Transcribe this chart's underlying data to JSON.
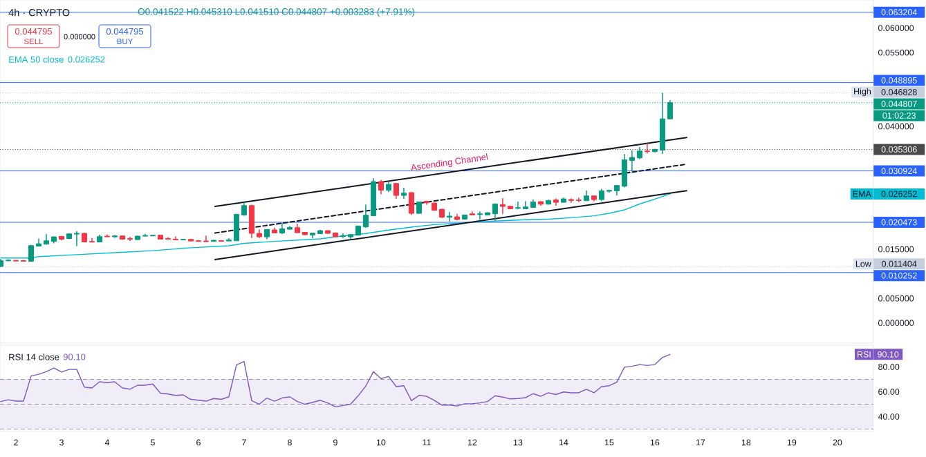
{
  "chart_data": [
    {
      "type": "candlestick",
      "title": "4h · CRYPTO",
      "x": [
        1.6667,
        1.8333,
        2,
        2.1667,
        2.3333,
        2.5,
        2.6667,
        2.8333,
        3,
        3.1667,
        3.3333,
        3.5,
        3.6667,
        3.8333,
        4,
        4.1667,
        4.3333,
        4.5,
        4.6667,
        4.8333,
        5,
        5.1667,
        5.3333,
        5.5,
        5.6667,
        5.8333,
        6,
        6.1667,
        6.3333,
        6.5,
        6.6667,
        6.8333,
        7,
        7.1667,
        7.3333,
        7.5,
        7.6667,
        7.8333,
        8,
        8.1667,
        8.3333,
        8.5,
        8.6667,
        8.8333,
        9,
        9.1667,
        9.3333,
        9.5,
        9.6667,
        9.8333,
        10,
        10.1667,
        10.3333,
        10.5,
        10.6667,
        10.8333,
        11,
        11.1667,
        11.3333,
        11.5,
        11.6667,
        11.8333,
        12,
        12.1667,
        12.3333,
        12.5,
        12.6667,
        12.8333,
        13,
        13.1667,
        13.3333,
        13.5,
        13.6667,
        13.8333,
        14,
        14.1667,
        14.3333,
        14.5,
        14.6667,
        14.8333,
        15,
        15.1667,
        15.3333,
        15.5,
        15.6667,
        15.8333,
        16,
        16.1667,
        16.3333
      ],
      "ohlc": [
        [
          0.0115,
          0.013,
          0.0114,
          0.0127
        ],
        [
          0.01264,
          0.01293,
          0.01255,
          0.01278
        ],
        [
          0.01274,
          0.01278,
          0.01255,
          0.0126
        ],
        [
          0.01269,
          0.01283,
          0.01255,
          0.01255
        ],
        [
          0.01255,
          0.01588,
          0.0125,
          0.01573
        ],
        [
          0.01564,
          0.01714,
          0.0156,
          0.01611
        ],
        [
          0.01602,
          0.01808,
          0.01597,
          0.01672
        ],
        [
          0.01658,
          0.0176,
          0.0162,
          0.01751
        ],
        [
          0.01761,
          0.0177,
          0.01681,
          0.01705
        ],
        [
          0.01719,
          0.01822,
          0.01705,
          0.01812
        ],
        [
          0.01808,
          0.01869,
          0.01564,
          0.01822
        ],
        [
          0.01822,
          0.01836,
          0.0164,
          0.01648
        ],
        [
          0.01658,
          0.01728,
          0.0164,
          0.01644
        ],
        [
          0.01648,
          0.01794,
          0.0164,
          0.01756
        ],
        [
          0.01766,
          0.01798,
          0.01747,
          0.01751
        ],
        [
          0.01751,
          0.01789,
          0.01733,
          0.0177
        ],
        [
          0.0177,
          0.01775,
          0.01691,
          0.01705
        ],
        [
          0.01719,
          0.01751,
          0.01667,
          0.01705
        ],
        [
          0.01695,
          0.01775,
          0.0169,
          0.01766
        ],
        [
          0.01766,
          0.01812,
          0.01761,
          0.0178
        ],
        [
          0.0177,
          0.01789,
          0.01766,
          0.01784
        ],
        [
          0.01784,
          0.01789,
          0.017,
          0.01705
        ],
        [
          0.01719,
          0.01742,
          0.017,
          0.01705
        ],
        [
          0.01705,
          0.01761,
          0.01686,
          0.01691
        ],
        [
          0.01691,
          0.01705,
          0.01686,
          0.017
        ],
        [
          0.017,
          0.01705,
          0.01662,
          0.01667
        ],
        [
          0.01672,
          0.01686,
          0.01653,
          0.01658
        ],
        [
          0.01667,
          0.01775,
          0.01648,
          0.01653
        ],
        [
          0.01658,
          0.01691,
          0.01653,
          0.01681
        ],
        [
          0.01676,
          0.01681,
          0.01658,
          0.01662
        ],
        [
          0.01667,
          0.01723,
          0.01662,
          0.01691
        ],
        [
          0.01672,
          0.0222,
          0.01667,
          0.0221
        ],
        [
          0.02196,
          0.02454,
          0.02182,
          0.02388
        ],
        [
          0.02388,
          0.02407,
          0.01728,
          0.01822
        ],
        [
          0.01822,
          0.01901,
          0.01728,
          0.01751
        ],
        [
          0.01751,
          0.0191,
          0.01705,
          0.01901
        ],
        [
          0.01892,
          0.01939,
          0.01826,
          0.01831
        ],
        [
          0.01831,
          0.02032,
          0.01808,
          0.01915
        ],
        [
          0.01906,
          0.01972,
          0.01901,
          0.01943
        ],
        [
          0.01939,
          0.02018,
          0.01831,
          0.01836
        ],
        [
          0.01845,
          0.0185,
          0.01789,
          0.01794
        ],
        [
          0.01789,
          0.01831,
          0.01723,
          0.01826
        ],
        [
          0.01817,
          0.01892,
          0.01812,
          0.01878
        ],
        [
          0.01878,
          0.01885,
          0.01817,
          0.01822
        ],
        [
          0.01831,
          0.0184,
          0.01745,
          0.01751
        ],
        [
          0.01761,
          0.01822,
          0.01728,
          0.01775
        ],
        [
          0.01751,
          0.01805,
          0.01705,
          0.01798
        ],
        [
          0.01784,
          0.0198,
          0.0178,
          0.01972
        ],
        [
          0.01953,
          0.02407,
          0.01939,
          0.02192
        ],
        [
          0.02182,
          0.02946,
          0.02175,
          0.02875
        ],
        [
          0.02875,
          0.02908,
          0.02618,
          0.02702
        ],
        [
          0.02702,
          0.02861,
          0.02665,
          0.02819
        ],
        [
          0.02838,
          0.0285,
          0.02524,
          0.02594
        ],
        [
          0.02594,
          0.02749,
          0.02524,
          0.02641
        ],
        [
          0.02651,
          0.0266,
          0.02196,
          0.02229
        ],
        [
          0.02229,
          0.0247,
          0.0222,
          0.02463
        ],
        [
          0.02477,
          0.02485,
          0.02407,
          0.02445
        ],
        [
          0.0244,
          0.02445,
          0.02285,
          0.0229
        ],
        [
          0.02313,
          0.0232,
          0.02135,
          0.0215
        ],
        [
          0.0215,
          0.02257,
          0.02065,
          0.02173
        ],
        [
          0.02159,
          0.0222,
          0.02089,
          0.02103
        ],
        [
          0.02112,
          0.02205,
          0.02105,
          0.02196
        ],
        [
          0.0222,
          0.02267,
          0.0219,
          0.02196
        ],
        [
          0.02206,
          0.02267,
          0.02103,
          0.0222
        ],
        [
          0.02196,
          0.0225,
          0.0219,
          0.02243
        ],
        [
          0.0222,
          0.0243,
          0.02079,
          0.02421
        ],
        [
          0.02407,
          0.02538,
          0.0222,
          0.0237
        ],
        [
          0.02374,
          0.0238,
          0.02318,
          0.02323
        ],
        [
          0.02332,
          0.02468,
          0.02313,
          0.02346
        ],
        [
          0.02323,
          0.02477,
          0.02318,
          0.0236
        ],
        [
          0.02351,
          0.0251,
          0.02346,
          0.02463
        ],
        [
          0.02468,
          0.02475,
          0.02384,
          0.02416
        ],
        [
          0.02416,
          0.0251,
          0.0241,
          0.02491
        ],
        [
          0.02501,
          0.02533,
          0.02384,
          0.02454
        ],
        [
          0.02454,
          0.02548,
          0.0245,
          0.02524
        ],
        [
          0.0251,
          0.02533,
          0.02445,
          0.02491
        ],
        [
          0.02501,
          0.02548,
          0.02454,
          0.02491
        ],
        [
          0.02487,
          0.02697,
          0.0248,
          0.02585
        ],
        [
          0.02585,
          0.0259,
          0.02477,
          0.0251
        ],
        [
          0.0251,
          0.02726,
          0.02477,
          0.02688
        ],
        [
          0.02679,
          0.02711,
          0.02651,
          0.02697
        ],
        [
          0.02688,
          0.028,
          0.02594,
          0.02796
        ],
        [
          0.02782,
          0.03437,
          0.02758,
          0.0332
        ],
        [
          0.03306,
          0.03508,
          0.03086,
          0.03367
        ],
        [
          0.03358,
          0.03578,
          0.03334,
          0.03498
        ],
        [
          0.03498,
          0.03662,
          0.03447,
          0.03484
        ],
        [
          0.03484,
          0.0354,
          0.0347,
          0.03531
        ],
        [
          0.03517,
          0.046828,
          0.03437,
          0.041522
        ],
        [
          0.041522,
          0.04531,
          0.04151,
          0.044807
        ]
      ],
      "colors": [
        "#089981",
        "#089981",
        "#f23645",
        "#f23645",
        "#089981",
        "#089981",
        "#089981",
        "#089981",
        "#f23645",
        "#089981",
        "#089981",
        "#f23645",
        "#f23645",
        "#089981",
        "#f23645",
        "#089981",
        "#f23645",
        "#f23645",
        "#089981",
        "#089981",
        "#089981",
        "#f23645",
        "#f23645",
        "#f23645",
        "#089981",
        "#f23645",
        "#f23645",
        "#f23645",
        "#089981",
        "#f23645",
        "#089981",
        "#089981",
        "#089981",
        "#f23645",
        "#f23645",
        "#089981",
        "#f23645",
        "#089981",
        "#089981",
        "#f23645",
        "#f23645",
        "#089981",
        "#089981",
        "#f23645",
        "#f23645",
        "#089981",
        "#089981",
        "#089981",
        "#089981",
        "#089981",
        "#f23645",
        "#089981",
        "#f23645",
        "#089981",
        "#f23645",
        "#089981",
        "#f23645",
        "#f23645",
        "#f23645",
        "#089981",
        "#f23645",
        "#089981",
        "#f23645",
        "#089981",
        "#089981",
        "#089981",
        "#f23645",
        "#f23645",
        "#089981",
        "#089981",
        "#089981",
        "#f23645",
        "#089981",
        "#f23645",
        "#089981",
        "#f23645",
        "#f23645",
        "#089981",
        "#f23645",
        "#089981",
        "#089981",
        "#089981",
        "#089981",
        "#089981",
        "#089981",
        "#f23645",
        "#089981",
        "#089981",
        "#089981"
      ],
      "series": [
        {
          "name": "EMA 50 close",
          "type": "line",
          "color": "#00bcd4",
          "x": [
            1.6667,
            2.3333,
            2.5,
            3.3333,
            4.1667,
            5,
            5.8333,
            6.6667,
            7,
            7.6667,
            8.6667,
            9.1667,
            9.6667,
            10.1667,
            10.6667,
            11.1667,
            11.6667,
            12.1667,
            12.6667,
            13.1667,
            13.6667,
            14.1667,
            14.6667,
            15,
            15.3333,
            15.6667,
            16,
            16.3333
          ],
          "values": [
            0.0132,
            0.0132,
            0.0135,
            0.0139,
            0.0143,
            0.0147,
            0.0153,
            0.0157,
            0.0162,
            0.0166,
            0.0171,
            0.0177,
            0.0182,
            0.0189,
            0.0195,
            0.02,
            0.0203,
            0.0206,
            0.0208,
            0.021,
            0.0211,
            0.0214,
            0.0218,
            0.0223,
            0.023,
            0.0242,
            0.0252,
            0.026252
          ]
        },
        {
          "type": "line",
          "color": "#131722",
          "x": [
            6.364,
            16.697
          ],
          "values": [
            0.0237,
            0.0377
          ]
        },
        {
          "type": "line",
          "color": "#131722",
          "line_style": "dashed",
          "x": [
            6.364,
            16.697
          ],
          "values": [
            0.0183,
            0.0323
          ]
        },
        {
          "type": "line",
          "color": "#131722",
          "x": [
            6.364,
            16.697
          ],
          "values": [
            0.0129,
            0.0269
          ]
        }
      ],
      "xlim": [
        1.652,
        20.79
      ],
      "ylim": [
        -0.0041,
        0.0657
      ],
      "xticks": [
        2,
        3,
        4,
        5,
        6,
        7,
        8,
        9,
        10,
        11,
        12,
        13,
        14,
        15,
        16,
        17,
        18,
        19,
        20
      ],
      "yticks": [
        {
          "value": 0,
          "label": "0.000000"
        },
        {
          "value": 0.005,
          "label": "0.005000"
        },
        {
          "value": 0.015,
          "label": "0.015000"
        },
        {
          "value": 0.04,
          "label": "0.040000"
        },
        {
          "value": 0.055,
          "label": "0.055000"
        },
        {
          "value": 0.06,
          "label": "0.060000"
        }
      ],
      "tick_labels": "y",
      "ref_lines": [
        {
          "axis": "y",
          "value": 0.063204,
          "label": "0.063204",
          "color": "#2962ff"
        },
        {
          "axis": "y",
          "value": 0.048895,
          "label": "0.048895",
          "color": "#2962ff"
        },
        {
          "axis": "y",
          "value": 0.046828,
          "label": "0.046828",
          "color": "#c4cedd",
          "line_style": "dotted"
        },
        {
          "axis": "y",
          "value": 0.044807,
          "label": "0.044807",
          "color": "#089981",
          "line_style": "dotted"
        },
        {
          "axis": "y",
          "value": 0.035306,
          "label": "0.035306",
          "color": "#4a4a4a",
          "line_style": "dotted"
        },
        {
          "axis": "y",
          "value": 0.030924,
          "label": "0.030924",
          "color": "#2962ff"
        },
        {
          "axis": "y",
          "value": 0.020473,
          "label": "0.020473",
          "color": "#2962ff"
        },
        {
          "axis": "y",
          "value": 0.011404,
          "label": "0.011404",
          "color": "#c4cedd",
          "line_style": "dotted"
        },
        {
          "axis": "y",
          "value": 0.010252,
          "label": "0.010252",
          "color": "#2962ff"
        }
      ],
      "legend": "top left",
      "annotations": [
        "O0.041522 H0.045310 L0.041510 C0.044807 +0.003283 (+7.91%)",
        "0.044795",
        "SELL",
        "0.000000",
        "0.044795",
        "BUY",
        "0.026252",
        "Ascending Channel",
        {
          "text": "High",
          "y": 0.046828
        },
        {
          "text": "Low",
          "y": 0.011404
        },
        "EMA",
        "0.026252",
        "01:02:23"
      ]
    },
    {
      "type": "line",
      "x": [
        1.6667,
        1.8333,
        2,
        2.1667,
        2.3333,
        2.5,
        2.6667,
        2.8333,
        3,
        3.1667,
        3.3333,
        3.5,
        3.6667,
        3.8333,
        4,
        4.1667,
        4.3333,
        4.5,
        4.6667,
        4.8333,
        5,
        5.1667,
        5.3333,
        5.5,
        5.6667,
        5.8333,
        6,
        6.1667,
        6.3333,
        6.5,
        6.6667,
        6.8333,
        7,
        7.1667,
        7.3333,
        7.5,
        7.6667,
        7.8333,
        8,
        8.1667,
        8.3333,
        8.5,
        8.6667,
        8.8333,
        9,
        9.1667,
        9.3333,
        9.5,
        9.6667,
        9.8333,
        10,
        10.1667,
        10.3333,
        10.5,
        10.6667,
        10.8333,
        11,
        11.1667,
        11.3333,
        11.5,
        11.6667,
        11.8333,
        12,
        12.1667,
        12.3333,
        12.5,
        12.6667,
        12.8333,
        13,
        13.1667,
        13.3333,
        13.5,
        13.6667,
        13.8333,
        14,
        14.1667,
        14.3333,
        14.5,
        14.6667,
        14.8333,
        15,
        15.1667,
        15.3333,
        15.5,
        15.6667,
        15.8333,
        16,
        16.1667,
        16.3333
      ],
      "series": [
        {
          "name": "RSI 14 close",
          "color": "#7e57c2",
          "values": [
            52.2,
            53.6,
            52.5,
            52.5,
            72.7,
            74.1,
            76.2,
            79.1,
            75.9,
            78.0,
            78.0,
            63.8,
            63.1,
            68.1,
            67.4,
            68.1,
            63.1,
            62.1,
            65.3,
            65.3,
            66.3,
            58.9,
            58.2,
            57.1,
            57.5,
            53.9,
            53.2,
            52.5,
            54.6,
            53.9,
            56.0,
            81.6,
            84.4,
            52.9,
            50.0,
            55.0,
            52.5,
            55.0,
            56.0,
            52.2,
            50.0,
            51.4,
            53.2,
            51.1,
            47.9,
            49.0,
            50.0,
            56.8,
            64.6,
            76.2,
            70.6,
            72.3,
            64.2,
            64.9,
            52.9,
            57.1,
            56.4,
            53.2,
            49.3,
            49.3,
            48.6,
            50.4,
            50.4,
            51.1,
            52.2,
            56.8,
            55.7,
            54.3,
            54.6,
            55.3,
            58.5,
            56.4,
            59.2,
            57.8,
            59.9,
            59.2,
            59.2,
            62.1,
            59.2,
            64.2,
            64.9,
            67.7,
            79.8,
            80.5,
            81.9,
            81.2,
            81.9,
            87.6,
            90.1
          ]
        }
      ],
      "xlim": [
        1.652,
        20.79
      ],
      "ylim": [
        28.1,
        97.5
      ],
      "xticks": [
        2,
        3,
        4,
        5,
        6,
        7,
        8,
        9,
        10,
        11,
        12,
        13,
        14,
        15,
        16,
        17,
        18,
        19,
        20
      ],
      "yticks": [
        {
          "value": 40,
          "label": "40.00"
        },
        {
          "value": 60,
          "label": "60.00"
        },
        {
          "value": 80,
          "label": "80.00"
        }
      ],
      "ref_lines": [
        {
          "axis": "y",
          "value": 70,
          "color": "#9598a1",
          "line_style": "dashed"
        },
        {
          "axis": "y",
          "value": 50,
          "color": "#9598a1",
          "line_style": "dashed"
        },
        {
          "axis": "y",
          "value": 30,
          "color": "#9598a1",
          "line_style": "dashed"
        }
      ],
      "bands": [
        {
          "axis": "y",
          "from": 30,
          "to": 70,
          "color": "#f0ecf8"
        }
      ],
      "legend": "top left",
      "annotations": [
        "90.10",
        "RSI",
        "90.10"
      ]
    }
  ]
}
